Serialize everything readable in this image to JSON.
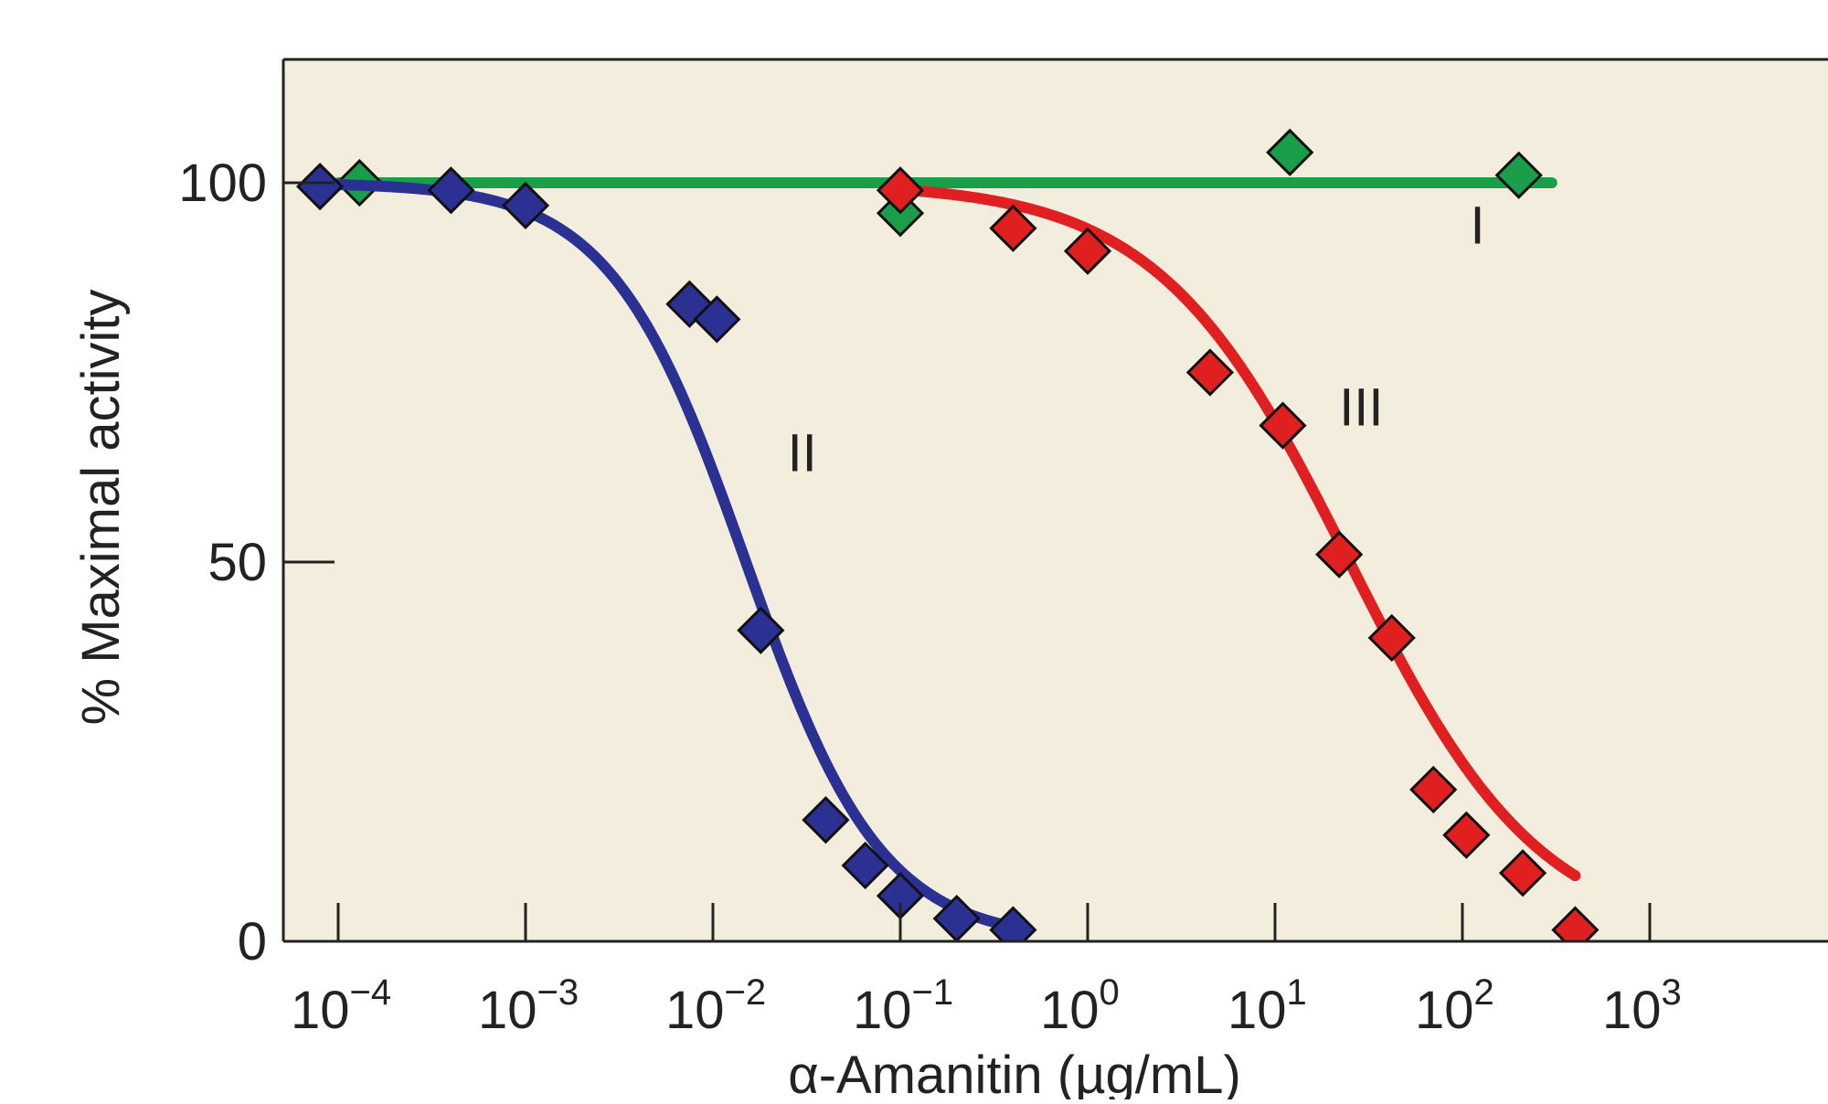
{
  "chart_data": {
    "type": "scatter",
    "title": "",
    "xlabel": "α-Amanitin (µg/mL)",
    "ylabel": "% Maximal activity",
    "xscale": "log",
    "xlim": [
      5e-05,
      3000
    ],
    "ylim": [
      0,
      120
    ],
    "grid": false,
    "legend": "none",
    "x_ticks": [
      {
        "value": 0.0001,
        "base": "10",
        "exp": "−4"
      },
      {
        "value": 0.001,
        "base": "10",
        "exp": "−3"
      },
      {
        "value": 0.01,
        "base": "10",
        "exp": "−2"
      },
      {
        "value": 0.1,
        "base": "10",
        "exp": "−1"
      },
      {
        "value": 1,
        "base": "10",
        "exp": "0"
      },
      {
        "value": 10,
        "base": "10",
        "exp": "1"
      },
      {
        "value": 100,
        "base": "10",
        "exp": "2"
      },
      {
        "value": 1000,
        "base": "10",
        "exp": "3"
      }
    ],
    "y_ticks": [
      {
        "value": 0,
        "label": "0"
      },
      {
        "value": 50,
        "label": "50"
      },
      {
        "value": 100,
        "label": "100"
      }
    ],
    "series": [
      {
        "name": "I",
        "color": "#1a9e4a",
        "marker": "diamond",
        "line": "horizontal",
        "line_value": 100,
        "line_x": [
          0.0001,
          300
        ],
        "label_at": {
          "x": 110,
          "y": 92
        },
        "points": [
          {
            "x": 0.00013,
            "y": 100
          },
          {
            "x": 0.1,
            "y": 96
          },
          {
            "x": 12,
            "y": 104
          },
          {
            "x": 200,
            "y": 101
          }
        ]
      },
      {
        "name": "II",
        "color": "#2b3192",
        "marker": "diamond",
        "line": "sigmoid",
        "ic50": 0.015,
        "hill": 1.2,
        "line_x": [
          8e-05,
          0.4
        ],
        "label_at": {
          "x": 0.025,
          "y": 62
        },
        "points": [
          {
            "x": 8e-05,
            "y": 99.5
          },
          {
            "x": 0.0004,
            "y": 99
          },
          {
            "x": 0.001,
            "y": 97
          },
          {
            "x": 0.0075,
            "y": 84
          },
          {
            "x": 0.0105,
            "y": 82
          },
          {
            "x": 0.018,
            "y": 41
          },
          {
            "x": 0.04,
            "y": 16
          },
          {
            "x": 0.065,
            "y": 10
          },
          {
            "x": 0.1,
            "y": 6
          },
          {
            "x": 0.2,
            "y": 3
          },
          {
            "x": 0.4,
            "y": 1.5
          }
        ]
      },
      {
        "name": "III",
        "color": "#e02020",
        "marker": "diamond",
        "line": "sigmoid",
        "ic50": 25,
        "hill": 0.85,
        "line_x": [
          0.1,
          400
        ],
        "label_at": {
          "x": 22,
          "y": 68
        },
        "points": [
          {
            "x": 0.1,
            "y": 99
          },
          {
            "x": 0.4,
            "y": 94
          },
          {
            "x": 1,
            "y": 91
          },
          {
            "x": 4.5,
            "y": 75
          },
          {
            "x": 11,
            "y": 68
          },
          {
            "x": 22,
            "y": 51
          },
          {
            "x": 42,
            "y": 40
          },
          {
            "x": 70,
            "y": 20
          },
          {
            "x": 105,
            "y": 14
          },
          {
            "x": 210,
            "y": 9
          },
          {
            "x": 400,
            "y": 1.5
          }
        ]
      }
    ]
  }
}
